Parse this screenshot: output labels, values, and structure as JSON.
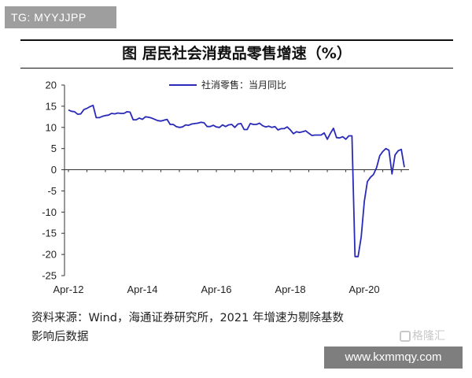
{
  "watermark_top": "TG: MYYJJPP",
  "site_watermark": "www.kxmmqy.com",
  "brand_logo": "格隆汇",
  "chart_data": {
    "type": "line",
    "title": "图  居民社会消费品零售增速（%）",
    "xlabel": "",
    "ylabel": "",
    "ylim": [
      -25,
      20
    ],
    "yticks": [
      20,
      15,
      10,
      5,
      0,
      -5,
      -10,
      -15,
      -20,
      -25
    ],
    "x_tick_labels": [
      "Apr-12",
      "Apr-14",
      "Apr-16",
      "Apr-18",
      "Apr-20"
    ],
    "x_tick_months": [
      0,
      24,
      48,
      72,
      96
    ],
    "x_start": "2012-04",
    "legend_position": "top-center",
    "grid": false,
    "series": [
      {
        "name": "社消零售：当月同比",
        "color": "#2a2ab8",
        "x": [
          "2012-04",
          "2012-05",
          "2012-06",
          "2012-07",
          "2012-08",
          "2012-09",
          "2012-10",
          "2012-11",
          "2012-12",
          "2013-01",
          "2013-02",
          "2013-03",
          "2013-04",
          "2013-05",
          "2013-06",
          "2013-07",
          "2013-08",
          "2013-09",
          "2013-10",
          "2013-11",
          "2013-12",
          "2014-01",
          "2014-02",
          "2014-03",
          "2014-04",
          "2014-05",
          "2014-06",
          "2014-07",
          "2014-08",
          "2014-09",
          "2014-10",
          "2014-11",
          "2014-12",
          "2015-01",
          "2015-02",
          "2015-03",
          "2015-04",
          "2015-05",
          "2015-06",
          "2015-07",
          "2015-08",
          "2015-09",
          "2015-10",
          "2015-11",
          "2015-12",
          "2016-01",
          "2016-02",
          "2016-03",
          "2016-04",
          "2016-05",
          "2016-06",
          "2016-07",
          "2016-08",
          "2016-09",
          "2016-10",
          "2016-11",
          "2016-12",
          "2017-01",
          "2017-02",
          "2017-03",
          "2017-04",
          "2017-05",
          "2017-06",
          "2017-07",
          "2017-08",
          "2017-09",
          "2017-10",
          "2017-11",
          "2017-12",
          "2018-01",
          "2018-02",
          "2018-03",
          "2018-04",
          "2018-05",
          "2018-06",
          "2018-07",
          "2018-08",
          "2018-09",
          "2018-10",
          "2018-11",
          "2018-12",
          "2019-01",
          "2019-02",
          "2019-03",
          "2019-04",
          "2019-05",
          "2019-06",
          "2019-07",
          "2019-08",
          "2019-09",
          "2019-10",
          "2019-11",
          "2019-12",
          "2020-01",
          "2020-02",
          "2020-03",
          "2020-04",
          "2020-05",
          "2020-06",
          "2020-07",
          "2020-08",
          "2020-09",
          "2020-10",
          "2020-11",
          "2020-12",
          "2021-01",
          "2021-02",
          "2021-03",
          "2021-04",
          "2021-05"
        ],
        "values": [
          14.1,
          13.8,
          13.7,
          13.1,
          13.2,
          14.2,
          14.5,
          14.9,
          15.2,
          12.3,
          12.3,
          12.6,
          12.8,
          12.9,
          13.3,
          13.2,
          13.4,
          13.3,
          13.3,
          13.7,
          13.6,
          11.8,
          11.8,
          12.2,
          11.9,
          12.5,
          12.4,
          12.2,
          11.9,
          11.6,
          11.5,
          11.7,
          11.9,
          10.7,
          10.7,
          10.2,
          10.0,
          10.1,
          10.6,
          10.5,
          10.8,
          10.9,
          11.0,
          11.2,
          11.1,
          10.2,
          10.2,
          10.5,
          10.1,
          10.0,
          10.6,
          10.2,
          10.6,
          10.7,
          10.0,
          10.8,
          10.9,
          9.5,
          9.5,
          10.9,
          10.7,
          10.7,
          11.0,
          10.4,
          10.1,
          10.3,
          10.0,
          10.2,
          9.4,
          9.7,
          9.7,
          10.1,
          9.4,
          8.5,
          9.0,
          8.8,
          9.0,
          9.2,
          8.6,
          8.1,
          8.2,
          8.2,
          8.2,
          8.7,
          7.2,
          8.6,
          9.8,
          7.6,
          7.5,
          7.8,
          7.2,
          8.0,
          8.0,
          -20.5,
          -20.5,
          -15.8,
          -7.5,
          -2.8,
          -1.8,
          -1.1,
          0.5,
          3.3,
          4.3,
          5.0,
          4.6,
          -1.0,
          3.5,
          4.5,
          4.8,
          0.6
        ]
      }
    ]
  },
  "source_text_line1": "资料来源：Wind，海通证券研究所，2021 年增速为剔除基数",
  "source_text_line2": "影响后数据"
}
